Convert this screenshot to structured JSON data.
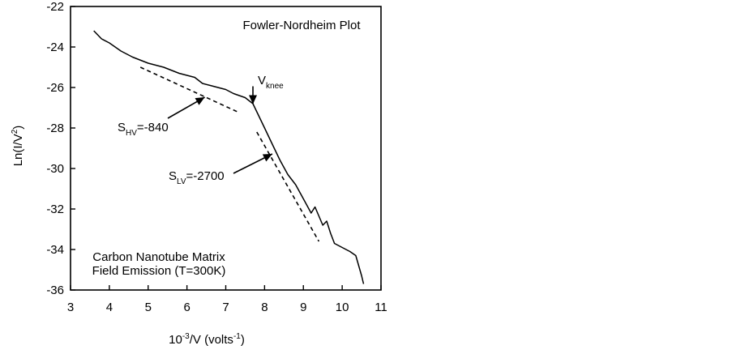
{
  "chart_data": {
    "type": "line",
    "title": "Fowler-Nordheim Plot",
    "xlabel": {
      "base": "10",
      "sup1": "-3",
      "mid": "/V (volts",
      "sup2": "-1",
      "end": ")"
    },
    "ylabel": {
      "base": "Ln(I/V",
      "sup": "2",
      "end": ")"
    },
    "xlim": [
      3,
      11
    ],
    "ylim": [
      -36,
      -22
    ],
    "x_ticks": [
      3,
      4,
      5,
      6,
      7,
      8,
      9,
      10,
      11
    ],
    "y_ticks": [
      -22,
      -24,
      -26,
      -28,
      -30,
      -32,
      -34,
      -36
    ],
    "x_tick_labels": [
      "3",
      "4",
      "5",
      "6",
      "7",
      "8",
      "9",
      "10",
      "11"
    ],
    "y_tick_labels": [
      "-22",
      "-24",
      "-26",
      "-28",
      "-30",
      "-32",
      "-34",
      "-36"
    ],
    "grid": false,
    "legend": "none",
    "series": [
      {
        "style": "solid",
        "x": [
          3.6,
          3.8,
          4.0,
          4.3,
          4.6,
          5.0,
          5.4,
          5.8,
          6.2,
          6.4,
          6.6,
          6.8,
          7.0,
          7.2,
          7.5,
          7.7,
          7.8,
          7.9,
          8.0,
          8.2,
          8.4,
          8.6,
          8.8,
          9.0,
          9.2,
          9.3,
          9.5,
          9.6,
          9.7,
          9.8,
          10.0,
          10.2,
          10.35,
          10.5,
          10.55
        ],
        "y": [
          -23.2,
          -23.6,
          -23.8,
          -24.2,
          -24.5,
          -24.8,
          -25.0,
          -25.3,
          -25.5,
          -25.8,
          -25.9,
          -26.0,
          -26.1,
          -26.3,
          -26.5,
          -26.8,
          -27.2,
          -27.6,
          -28.0,
          -28.8,
          -29.6,
          -30.3,
          -30.8,
          -31.5,
          -32.2,
          -31.9,
          -32.8,
          -32.6,
          -33.2,
          -33.7,
          -33.9,
          -34.1,
          -34.3,
          -35.3,
          -35.7
        ]
      },
      {
        "name": "",
        "style": "dashed",
        "x": [
          4.8,
          7.3
        ],
        "y": [
          -25.0,
          -27.2
        ]
      },
      {
        "name": "",
        "style": "dashed",
        "x": [
          7.8,
          9.4
        ],
        "y": [
          -28.2,
          -33.6
        ]
      }
    ],
    "annotations": [
      {
        "id": "title",
        "text": "Fowler-Nordheim Plot"
      },
      {
        "id": "knee",
        "base": "V",
        "sub": "knee",
        "arrow_to": [
          7.7,
          -26.9
        ]
      },
      {
        "id": "hv",
        "base": "S",
        "sub": "HV",
        "rest": "=-840",
        "arrow_to": [
          6.5,
          -26.4
        ]
      },
      {
        "id": "lv",
        "base": "S",
        "sub": "LV",
        "rest": "=-2700",
        "arrow_to": [
          8.2,
          -29.2
        ]
      },
      {
        "id": "caption1",
        "text": "Carbon Nanotube Matrix"
      },
      {
        "id": "caption2",
        "text": "Field Emission (T=300K)"
      }
    ]
  }
}
